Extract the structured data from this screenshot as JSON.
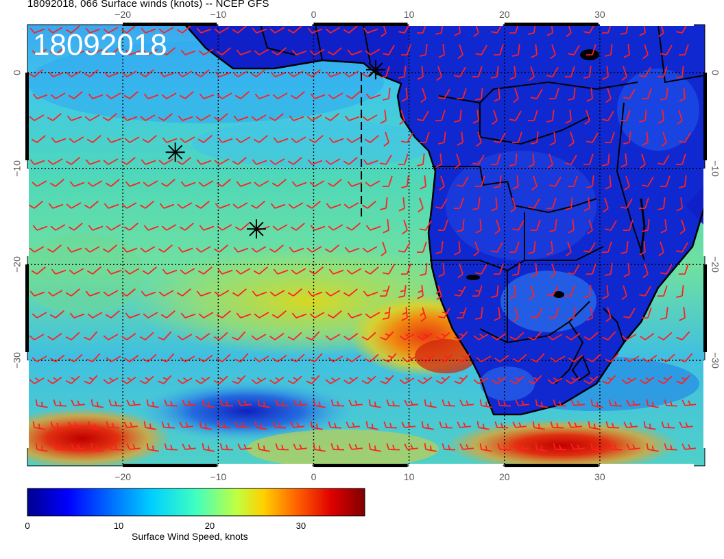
{
  "title": "18092018, 066 Surface winds (knots) -- NCEP GFS",
  "date_stamp": "18092018",
  "map": {
    "lon_range": [
      -30,
      41
    ],
    "lat_range": [
      -41,
      5
    ],
    "lon_ticks": [
      -20,
      -10,
      0,
      10,
      20,
      30
    ],
    "lat_ticks": [
      0,
      -10,
      -20,
      -30
    ],
    "lon_tick_labels": [
      "−20",
      "−10",
      "0",
      "10",
      "20",
      "30"
    ],
    "lat_tick_labels": [
      "0",
      "−10",
      "−20",
      "−30"
    ],
    "markers": [
      {
        "name": "star-marker-1",
        "lon": 6.5,
        "lat": 0.3
      },
      {
        "name": "star-marker-2",
        "lon": -14.5,
        "lat": -8.3
      },
      {
        "name": "star-marker-3",
        "lon": -6,
        "lat": -16.3
      }
    ],
    "track_line": {
      "lon": 5,
      "lat": [
        0,
        -15
      ]
    },
    "colors": {
      "wind_barb": "#ff2020",
      "land_border": "#000000",
      "grid": "#000000"
    }
  },
  "colorbar": {
    "title": "Surface Wind Speed, knots",
    "min": 0,
    "max": 37,
    "ticks": [
      0,
      10,
      20,
      30
    ],
    "tick_labels": [
      "0",
      "10",
      "20",
      "30"
    ],
    "colormap": [
      "#00008f",
      "#0000ff",
      "#0070ff",
      "#00d0ff",
      "#40ffc0",
      "#c0ff40",
      "#ffd000",
      "#ff6000",
      "#e00000",
      "#800000"
    ]
  }
}
